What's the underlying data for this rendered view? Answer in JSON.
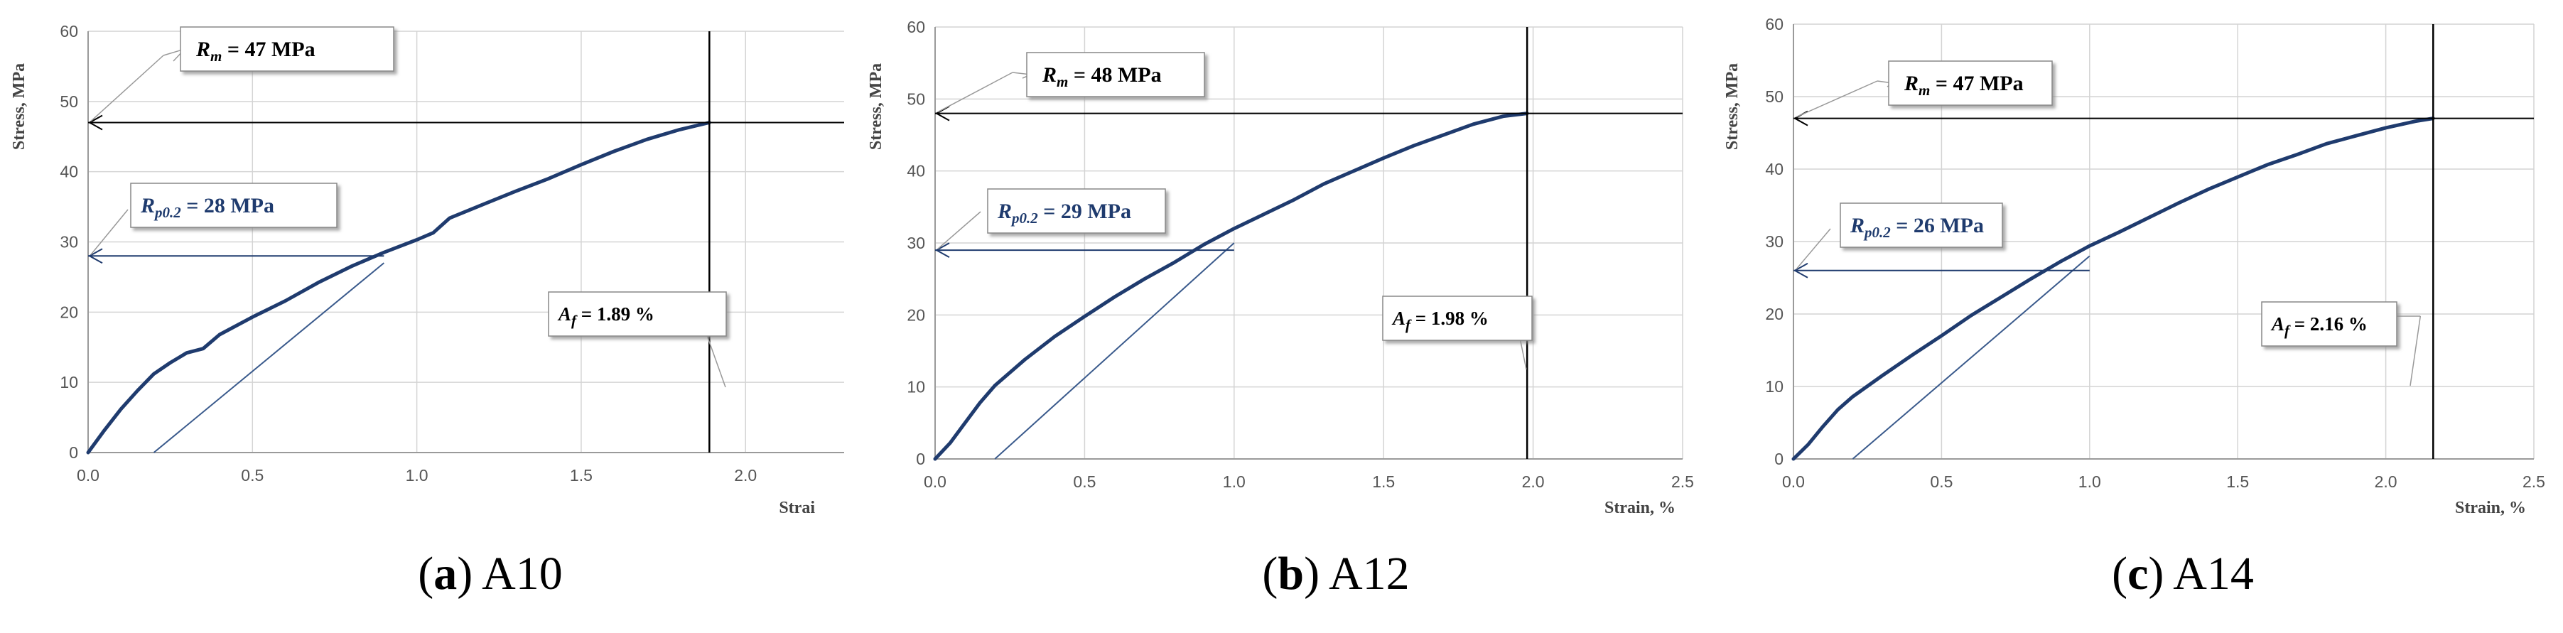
{
  "chart_data": [
    {
      "type": "line",
      "panel": "(a) A10",
      "caption": {
        "letter": "(a)",
        "sample": "A10"
      },
      "ylabel": "Stress, MPa",
      "xlabel": "Strai",
      "xlim": [
        0,
        2.3
      ],
      "ylim": [
        0,
        60
      ],
      "xticks": [
        0,
        0.5,
        1.0,
        1.5,
        2.0
      ],
      "xtick_labels": [
        "0.0",
        "0.5",
        "1.0",
        "1.5",
        "2.0"
      ],
      "yticks": [
        0,
        10,
        20,
        30,
        40,
        50,
        60
      ],
      "ytick_labels": [
        "0",
        "10",
        "20",
        "30",
        "40",
        "50",
        "60"
      ],
      "grid": true,
      "series": [
        {
          "x": [
            0,
            0.05,
            0.1,
            0.15,
            0.2,
            0.25,
            0.3,
            0.35,
            0.4,
            0.5,
            0.6,
            0.7,
            0.8,
            0.9,
            1.0,
            1.05,
            1.1,
            1.2,
            1.3,
            1.4,
            1.5,
            1.6,
            1.7,
            1.8,
            1.89
          ],
          "y": [
            0,
            3.2,
            6.2,
            8.8,
            11.2,
            12.8,
            14.2,
            14.8,
            16.8,
            19.3,
            21.6,
            24.2,
            26.5,
            28.5,
            30.3,
            31.3,
            33.4,
            35.3,
            37.2,
            39.0,
            41.0,
            42.9,
            44.6,
            46.0,
            47.0
          ]
        },
        {
          "x": [
            0.2,
            0.9
          ],
          "y": [
            0,
            27
          ]
        }
      ],
      "annotations": {
        "rm": {
          "symbol": "R",
          "sub": "m",
          "text": " =  47 MPa",
          "value": 47
        },
        "rp": {
          "symbol": "R",
          "sub": "p0.2",
          "text": " = 28 MPa",
          "value": 28
        },
        "af": {
          "symbol": "A",
          "sub": "f",
          "text": " = 1.89 %",
          "value": 1.89
        }
      }
    },
    {
      "type": "line",
      "panel": "(b) A12",
      "caption": {
        "letter": "(b)",
        "sample": "A12"
      },
      "ylabel": "Stress, MPa",
      "xlabel": "Strain, %",
      "xlim": [
        0,
        2.5
      ],
      "ylim": [
        0,
        60
      ],
      "xticks": [
        0,
        0.5,
        1.0,
        1.5,
        2.0,
        2.5
      ],
      "xtick_labels": [
        "0.0",
        "0.5",
        "1.0",
        "1.5",
        "2.0",
        "2.5"
      ],
      "yticks": [
        0,
        10,
        20,
        30,
        40,
        50,
        60
      ],
      "ytick_labels": [
        "0",
        "10",
        "20",
        "30",
        "40",
        "50",
        "60"
      ],
      "grid": true,
      "series": [
        {
          "x": [
            0,
            0.05,
            0.1,
            0.15,
            0.2,
            0.3,
            0.4,
            0.5,
            0.6,
            0.7,
            0.8,
            0.9,
            1.0,
            1.1,
            1.2,
            1.3,
            1.4,
            1.5,
            1.6,
            1.7,
            1.8,
            1.9,
            1.98
          ],
          "y": [
            0,
            2.2,
            5.0,
            7.8,
            10.2,
            13.8,
            17.0,
            19.8,
            22.5,
            25.0,
            27.3,
            29.8,
            32.0,
            34.0,
            36.0,
            38.2,
            40.0,
            41.8,
            43.5,
            45.0,
            46.5,
            47.6,
            48.0
          ]
        },
        {
          "x": [
            0.2,
            1.0
          ],
          "y": [
            0,
            30
          ]
        }
      ],
      "annotations": {
        "rm": {
          "symbol": "R",
          "sub": "m",
          "text": " = 48 MPa",
          "value": 48
        },
        "rp": {
          "symbol": "R",
          "sub": "p0.2",
          "text": " = 29 MPa",
          "value": 29
        },
        "af": {
          "symbol": "A",
          "sub": "f",
          "text": " = 1.98 %",
          "value": 1.98
        }
      }
    },
    {
      "type": "line",
      "panel": "(c) A14",
      "caption": {
        "letter": "(c)",
        "sample": "A14"
      },
      "ylabel": "Stress, MPa",
      "xlabel": "Strain, %",
      "xlim": [
        0,
        2.5
      ],
      "ylim": [
        0,
        60
      ],
      "xticks": [
        0,
        0.5,
        1.0,
        1.5,
        2.0,
        2.5
      ],
      "xtick_labels": [
        "0.0",
        "0.5",
        "1.0",
        "1.5",
        "2.0",
        "2.5"
      ],
      "yticks": [
        0,
        10,
        20,
        30,
        40,
        50,
        60
      ],
      "ytick_labels": [
        "0",
        "10",
        "20",
        "30",
        "40",
        "50",
        "60"
      ],
      "grid": true,
      "series": [
        {
          "x": [
            0,
            0.05,
            0.1,
            0.15,
            0.2,
            0.3,
            0.4,
            0.5,
            0.6,
            0.7,
            0.8,
            0.9,
            1.0,
            1.1,
            1.2,
            1.3,
            1.4,
            1.5,
            1.6,
            1.7,
            1.8,
            1.9,
            2.0,
            2.1,
            2.16
          ],
          "y": [
            0,
            2.0,
            4.5,
            6.8,
            8.6,
            11.5,
            14.3,
            17.0,
            19.8,
            22.3,
            24.8,
            27.2,
            29.4,
            31.3,
            33.3,
            35.3,
            37.2,
            38.9,
            40.6,
            42.0,
            43.5,
            44.6,
            45.7,
            46.6,
            47.0
          ]
        },
        {
          "x": [
            0.2,
            1.0
          ],
          "y": [
            0,
            28
          ]
        }
      ],
      "annotations": {
        "rm": {
          "symbol": "R",
          "sub": "m",
          "text": " = 47 MPa",
          "value": 47
        },
        "rp": {
          "symbol": "R",
          "sub": "p0.2",
          "text": " = 26 MPa",
          "value": 26
        },
        "af": {
          "symbol": "A",
          "sub": "f",
          "text": " = 2.16 %",
          "value": 2.16
        }
      }
    }
  ],
  "colors": {
    "curve": "#1f3b6e",
    "offset_line": "#3a5a8c",
    "arrow_line": "#1f3b6e",
    "marker_line": "#000000",
    "grid": "#d4d4d4",
    "axis": "#9a9a9a"
  }
}
